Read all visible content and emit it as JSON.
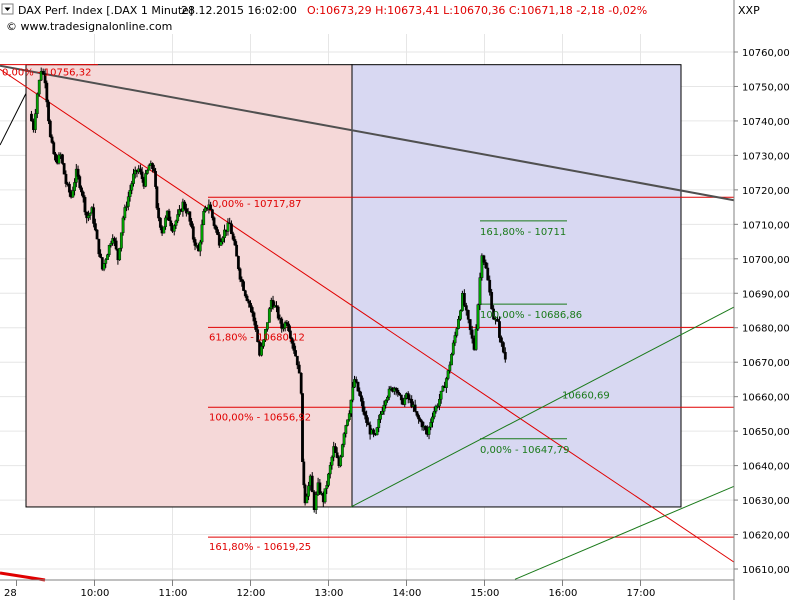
{
  "header": {
    "instrument": "DAX Perf. Index [.DAX  1 Minute]",
    "datetime": "28.12.2015 16:02:00",
    "ohlc": "O:10673,29 H:10673,41 L:10670,36 C:10671,18 -2,18 -0,02%",
    "axis_symbol": "XXP",
    "copyright": "© www.tradesignalonline.com"
  },
  "chart_data": {
    "type": "candlestick",
    "title": "DAX Perf. Index [.DAX  1 Minute]",
    "ylim": [
      10605,
      10775
    ],
    "yticks": [
      {
        "v": 10610,
        "label": "10610,00"
      },
      {
        "v": 10620,
        "label": "10620,00"
      },
      {
        "v": 10630,
        "label": "10630,00"
      },
      {
        "v": 10640,
        "label": "10640,00"
      },
      {
        "v": 10650,
        "label": "10650,00"
      },
      {
        "v": 10660,
        "label": "10660,00"
      },
      {
        "v": 10670,
        "label": "10670,00"
      },
      {
        "v": 10680,
        "label": "10680,00"
      },
      {
        "v": 10690,
        "label": "10690,00"
      },
      {
        "v": 10700,
        "label": "10700,00"
      },
      {
        "v": 10710,
        "label": "10710,00"
      },
      {
        "v": 10720,
        "label": "10720,00"
      },
      {
        "v": 10730,
        "label": "10730,00"
      },
      {
        "v": 10740,
        "label": "10740,00"
      },
      {
        "v": 10750,
        "label": "10750,00"
      },
      {
        "v": 10760,
        "label": "10760,00"
      }
    ],
    "xlim": [
      "09:10",
      "17:55"
    ],
    "xticks": [
      {
        "t": "09:00",
        "label": "28"
      },
      {
        "t": "10:00",
        "label": "10:00"
      },
      {
        "t": "11:00",
        "label": "11:00"
      },
      {
        "t": "12:00",
        "label": "12:00"
      },
      {
        "t": "13:00",
        "label": "13:00"
      },
      {
        "t": "14:00",
        "label": "14:00"
      },
      {
        "t": "15:00",
        "label": "15:00"
      },
      {
        "t": "16:00",
        "label": "16:00"
      },
      {
        "t": "17:00",
        "label": "17:00"
      }
    ],
    "price_path": [
      [
        "09:10",
        10742
      ],
      [
        "09:13",
        10738
      ],
      [
        "09:16",
        10748
      ],
      [
        "09:19",
        10755
      ],
      [
        "09:22",
        10752
      ],
      [
        "09:26",
        10735
      ],
      [
        "09:30",
        10728
      ],
      [
        "09:34",
        10730
      ],
      [
        "09:38",
        10722
      ],
      [
        "09:42",
        10718
      ],
      [
        "09:46",
        10725
      ],
      [
        "09:50",
        10720
      ],
      [
        "09:54",
        10712
      ],
      [
        "09:58",
        10714
      ],
      [
        "10:02",
        10705
      ],
      [
        "10:06",
        10697
      ],
      [
        "10:10",
        10702
      ],
      [
        "10:14",
        10707
      ],
      [
        "10:18",
        10700
      ],
      [
        "10:22",
        10712
      ],
      [
        "10:26",
        10718
      ],
      [
        "10:30",
        10724
      ],
      [
        "10:34",
        10726
      ],
      [
        "10:38",
        10722
      ],
      [
        "10:42",
        10727
      ],
      [
        "10:46",
        10726
      ],
      [
        "10:48",
        10714
      ],
      [
        "10:52",
        10708
      ],
      [
        "10:56",
        10713
      ],
      [
        "11:00",
        10709
      ],
      [
        "11:04",
        10712
      ],
      [
        "11:08",
        10716
      ],
      [
        "11:12",
        10713
      ],
      [
        "11:16",
        10706
      ],
      [
        "11:20",
        10702
      ],
      [
        "11:24",
        10713
      ],
      [
        "11:28",
        10716
      ],
      [
        "11:32",
        10710
      ],
      [
        "11:36",
        10705
      ],
      [
        "11:40",
        10708
      ],
      [
        "11:44",
        10710
      ],
      [
        "11:48",
        10703
      ],
      [
        "11:52",
        10695
      ],
      [
        "11:56",
        10690
      ],
      [
        "12:00",
        10686
      ],
      [
        "12:04",
        10680
      ],
      [
        "12:07",
        10672
      ],
      [
        "12:10",
        10676
      ],
      [
        "12:13",
        10682
      ],
      [
        "12:16",
        10688
      ],
      [
        "12:20",
        10685
      ],
      [
        "12:24",
        10680
      ],
      [
        "12:28",
        10682
      ],
      [
        "12:32",
        10676
      ],
      [
        "12:36",
        10670
      ],
      [
        "12:39",
        10662
      ],
      [
        "12:40",
        10640
      ],
      [
        "12:42",
        10630
      ],
      [
        "12:46",
        10636
      ],
      [
        "12:49",
        10628
      ],
      [
        "12:52",
        10634
      ],
      [
        "12:56",
        10630
      ],
      [
        "13:00",
        10637
      ],
      [
        "13:04",
        10645
      ],
      [
        "13:08",
        10640
      ],
      [
        "13:12",
        10650
      ],
      [
        "13:16",
        10656
      ],
      [
        "13:20",
        10665
      ],
      [
        "13:24",
        10660
      ],
      [
        "13:28",
        10654
      ],
      [
        "13:32",
        10650
      ],
      [
        "13:36",
        10648
      ],
      [
        "13:40",
        10655
      ],
      [
        "13:44",
        10660
      ],
      [
        "13:48",
        10662
      ],
      [
        "13:52",
        10663
      ],
      [
        "13:56",
        10658
      ],
      [
        "14:00",
        10660
      ],
      [
        "14:04",
        10658
      ],
      [
        "14:08",
        10654
      ],
      [
        "14:12",
        10652
      ],
      [
        "14:16",
        10649
      ],
      [
        "14:20",
        10655
      ],
      [
        "14:24",
        10658
      ],
      [
        "14:28",
        10662
      ],
      [
        "14:32",
        10667
      ],
      [
        "14:36",
        10675
      ],
      [
        "14:40",
        10683
      ],
      [
        "14:43",
        10689
      ],
      [
        "14:46",
        10684
      ],
      [
        "14:49",
        10679
      ],
      [
        "14:52",
        10674
      ],
      [
        "14:55",
        10687
      ],
      [
        "14:58",
        10702
      ],
      [
        "15:01",
        10697
      ],
      [
        "15:04",
        10690
      ],
      [
        "15:07",
        10683
      ],
      [
        "15:10",
        10681
      ],
      [
        "15:13",
        10675
      ],
      [
        "15:16",
        10671
      ]
    ],
    "annotations": {
      "levels": [
        {
          "label": "0,00% - 10756,32",
          "v": 10756.32,
          "color": "#e00000"
        },
        {
          "label": "0,00% - 10717,87",
          "v": 10717.87,
          "color": "#e00000"
        },
        {
          "label": "61,80% - 10680,12",
          "v": 10680.12,
          "color": "#e00000"
        },
        {
          "label": "100,00% - 10656,92",
          "v": 10656.92,
          "color": "#e00000"
        },
        {
          "label": "161,80% - 10619,25",
          "v": 10619.25,
          "color": "#e00000"
        },
        {
          "label": "161,80% - 10711",
          "v": 10711.0,
          "color": "#1a7a1a"
        },
        {
          "label": "100,00% - 10686,86",
          "v": 10686.86,
          "color": "#1a7a1a"
        },
        {
          "label": "0,00% - 10647,79",
          "v": 10647.79,
          "color": "#1a7a1a"
        },
        {
          "label": "10660,69",
          "v": 10660.69,
          "color": "#1a7a1a"
        }
      ]
    },
    "colors": {
      "up": "#00a000",
      "down": "#000000",
      "red_zone": "#f5d8d8",
      "blue_zone": "#d8d8f2",
      "fib_red": "#e00000",
      "fib_green": "#1a7a1a",
      "trendline": "#505050"
    },
    "grid": true,
    "legend": "none"
  }
}
